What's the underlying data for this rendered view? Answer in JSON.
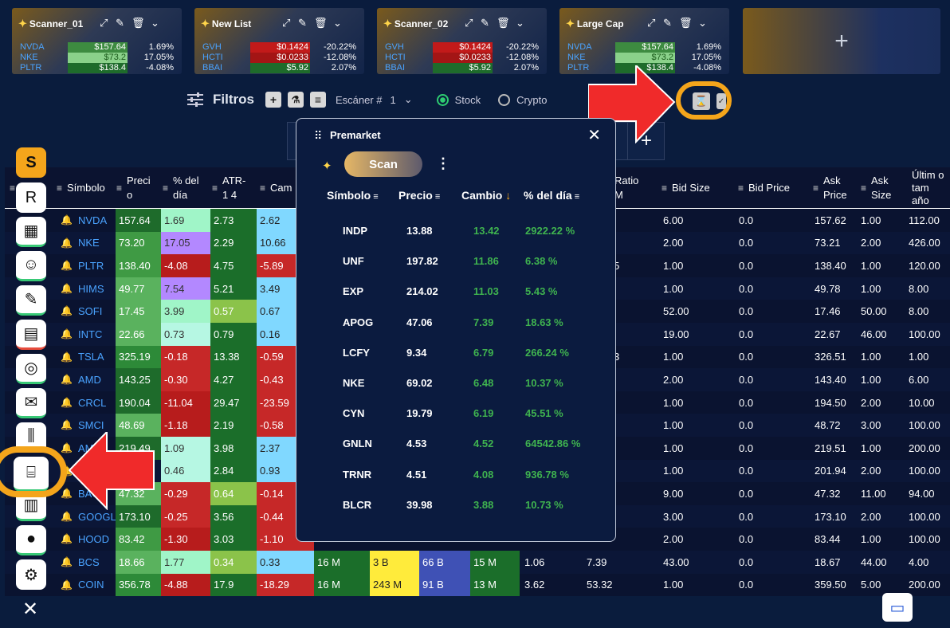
{
  "cards": [
    {
      "title": "Scanner_01",
      "rows": [
        {
          "s": "NVDA",
          "p": "$157.64",
          "c": "1.69%",
          "pc": "#3d8b40"
        },
        {
          "s": "NKE",
          "p": "$73.2",
          "c": "17.05%",
          "pc": "#8ad18a"
        },
        {
          "s": "PLTR",
          "p": "$138.4",
          "c": "-4.08%",
          "pc": "#1e6b2b"
        }
      ]
    },
    {
      "title": "New List",
      "rows": [
        {
          "s": "GVH",
          "p": "$0.1424",
          "c": "-20.22%",
          "pc": "#c21a1a"
        },
        {
          "s": "HCTI",
          "p": "$0.0233",
          "c": "-12.08%",
          "pc": "#a31515"
        },
        {
          "s": "BBAI",
          "p": "$5.92",
          "c": "2.07%",
          "pc": "#1e6b2b"
        }
      ]
    },
    {
      "title": "Scanner_02",
      "rows": [
        {
          "s": "GVH",
          "p": "$0.1424",
          "c": "-20.22%",
          "pc": "#c21a1a"
        },
        {
          "s": "HCTI",
          "p": "$0.0233",
          "c": "-12.08%",
          "pc": "#a31515"
        },
        {
          "s": "BBAI",
          "p": "$5.92",
          "c": "2.07%",
          "pc": "#1e6b2b"
        }
      ]
    },
    {
      "title": "Large Cap",
      "rows": [
        {
          "s": "NVDA",
          "p": "$157.64",
          "c": "1.69%",
          "pc": "#3d8b40"
        },
        {
          "s": "NKE",
          "p": "$73.2",
          "c": "17.05%",
          "pc": "#8ad18a"
        },
        {
          "s": "PLTR",
          "p": "$138.4",
          "c": "-4.08%",
          "pc": "#1e6b2b"
        }
      ]
    }
  ],
  "add_card": "+",
  "filters": {
    "label": "Filtros",
    "scanner_label": "Escáner #",
    "scanner_value": "1",
    "stock": "Stock",
    "crypto": "Crypto"
  },
  "tab_partial": "s",
  "tab_add": "+",
  "grid": {
    "headers": [
      "Símbolo",
      "Preci o",
      "% del día",
      "ATR-1 4",
      "Cam",
      "Ratio M",
      "Bid Size",
      "Bid Price",
      "Ask Price",
      "Ask Size",
      "Últim o tam año"
    ],
    "header_o": "o",
    "rows": [
      {
        "sym": "NVDA",
        "precio": "157.64",
        "pct": "1.69",
        "atr": "2.73",
        "cam": "2.62",
        "bs": "6.00",
        "bp": "0.0",
        "ap": "157.62",
        "as": "1.00",
        "last": "112.00"
      },
      {
        "sym": "NKE",
        "precio": "73.20",
        "pct": "17.05",
        "atr": "2.29",
        "cam": "10.66",
        "bs": "2.00",
        "bp": "0.0",
        "ap": "73.21",
        "as": "2.00",
        "last": "426.00"
      },
      {
        "sym": "PLTR",
        "precio": "138.40",
        "pct": "-4.08",
        "atr": "4.75",
        "cam": "-5.89",
        "ratio": "5",
        "bs": "1.00",
        "bp": "0.0",
        "ap": "138.40",
        "as": "1.00",
        "last": "120.00"
      },
      {
        "sym": "HIMS",
        "precio": "49.77",
        "pct": "7.54",
        "atr": "5.21",
        "cam": "3.49",
        "bs": "1.00",
        "bp": "0.0",
        "ap": "49.78",
        "as": "1.00",
        "last": "8.00"
      },
      {
        "sym": "SOFI",
        "precio": "17.45",
        "pct": "3.99",
        "atr": "0.57",
        "cam": "0.67",
        "bs": "52.00",
        "bp": "0.0",
        "ap": "17.46",
        "as": "50.00",
        "last": "8.00"
      },
      {
        "sym": "INTC",
        "precio": "22.66",
        "pct": "0.73",
        "atr": "0.79",
        "cam": "0.16",
        "bs": "19.00",
        "bp": "0.0",
        "ap": "22.67",
        "as": "46.00",
        "last": "100.00"
      },
      {
        "sym": "TSLA",
        "precio": "325.19",
        "pct": "-0.18",
        "atr": "13.38",
        "cam": "-0.59",
        "ratio": "3",
        "bs": "1.00",
        "bp": "0.0",
        "ap": "326.51",
        "as": "1.00",
        "last": "1.00"
      },
      {
        "sym": "AMD",
        "precio": "143.25",
        "pct": "-0.30",
        "atr": "4.27",
        "cam": "-0.43",
        "bs": "2.00",
        "bp": "0.0",
        "ap": "143.40",
        "as": "1.00",
        "last": "6.00"
      },
      {
        "sym": "CRCL",
        "precio": "190.04",
        "pct": "-11.04",
        "atr": "29.47",
        "cam": "-23.59",
        "bs": "1.00",
        "bp": "0.0",
        "ap": "194.50",
        "as": "2.00",
        "last": "10.00"
      },
      {
        "sym": "SMCI",
        "precio": "48.69",
        "pct": "-1.18",
        "atr": "2.19",
        "cam": "-0.58",
        "bs": "1.00",
        "bp": "0.0",
        "ap": "48.72",
        "as": "3.00",
        "last": "100.00"
      },
      {
        "sym": "AMZN",
        "precio": "219.49",
        "pct": "1.09",
        "atr": "3.98",
        "cam": "2.37",
        "bs": "1.00",
        "bp": "0.0",
        "ap": "219.51",
        "as": "1.00",
        "last": "200.00"
      },
      {
        "sym": "",
        "precio": "",
        "pct": "0.46",
        "atr": "2.84",
        "cam": "0.93",
        "bs": "1.00",
        "bp": "0.0",
        "ap": "201.94",
        "as": "2.00",
        "last": "100.00"
      },
      {
        "sym": "BAC",
        "precio": "47.32",
        "pct": "-0.29",
        "atr": "0.64",
        "cam": "-0.14",
        "bs": "9.00",
        "bp": "0.0",
        "ap": "47.32",
        "as": "11.00",
        "last": "94.00"
      },
      {
        "sym": "GOOGL",
        "precio": "173.10",
        "pct": "-0.25",
        "atr": "3.56",
        "cam": "-0.44",
        "bs": "3.00",
        "bp": "0.0",
        "ap": "173.10",
        "as": "2.00",
        "last": "100.00"
      },
      {
        "sym": "HOOD",
        "precio": "83.42",
        "pct": "-1.30",
        "atr": "3.03",
        "cam": "-1.10",
        "bs": "2.00",
        "bp": "0.0",
        "ap": "83.44",
        "as": "1.00",
        "last": "100.00"
      },
      {
        "sym": "BCS",
        "precio": "18.66",
        "pct": "1.77",
        "atr": "0.34",
        "cam": "0.33",
        "v1": "16 M",
        "v2": "3 B",
        "v3": "66 B",
        "v4": "15 M",
        "v5": "1.06",
        "ratio": "7.39",
        "bs": "43.00",
        "bp": "0.0",
        "ap": "18.67",
        "as": "44.00",
        "last": "4.00"
      },
      {
        "sym": "COIN",
        "precio": "356.78",
        "pct": "-4.88",
        "atr": "17.9",
        "cam": "-18.29",
        "v1": "16 M",
        "v2": "243 M",
        "v3": "91 B",
        "v4": "13 M",
        "v5": "3.62",
        "ratio": "53.32",
        "bs": "1.00",
        "bp": "0.0",
        "ap": "359.50",
        "as": "5.00",
        "last": "200.00"
      }
    ]
  },
  "sidebar": {
    "s": "S",
    "r": "R"
  },
  "premarket": {
    "title": "Premarket",
    "scan": "Scan",
    "headers": [
      "Símbolo",
      "Precio",
      "Cambio",
      "% del día"
    ],
    "rows": [
      {
        "s": "INDP",
        "p": "13.88",
        "c": "13.42",
        "d": "2922.22 %"
      },
      {
        "s": "UNF",
        "p": "197.82",
        "c": "11.86",
        "d": "6.38 %"
      },
      {
        "s": "EXP",
        "p": "214.02",
        "c": "11.03",
        "d": "5.43 %"
      },
      {
        "s": "APOG",
        "p": "47.06",
        "c": "7.39",
        "d": "18.63 %"
      },
      {
        "s": "LCFY",
        "p": "9.34",
        "c": "6.79",
        "d": "266.24 %"
      },
      {
        "s": "NKE",
        "p": "69.02",
        "c": "6.48",
        "d": "10.37 %"
      },
      {
        "s": "CYN",
        "p": "19.79",
        "c": "6.19",
        "d": "45.51 %"
      },
      {
        "s": "GNLN",
        "p": "4.53",
        "c": "4.52",
        "d": "64542.86 %"
      },
      {
        "s": "TRNR",
        "p": "4.51",
        "c": "4.08",
        "d": "936.78 %"
      },
      {
        "s": "BLCR",
        "p": "39.98",
        "c": "3.88",
        "d": "10.73 %"
      }
    ]
  },
  "close": "✕"
}
